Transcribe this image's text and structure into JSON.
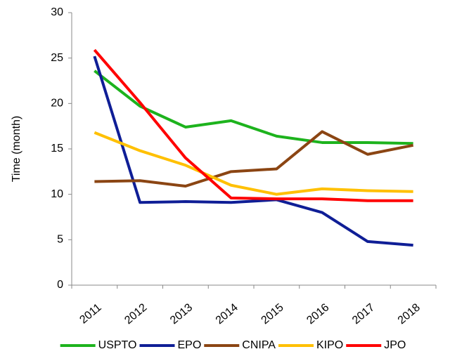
{
  "chart_data": {
    "type": "line",
    "y_label": "Time (month)",
    "categories": [
      "2011",
      "2012",
      "2013",
      "2014",
      "2015",
      "2016",
      "2017",
      "2018"
    ],
    "series": [
      {
        "name": "USPTO",
        "color": "#1db31d",
        "values": [
          23.6,
          19.7,
          17.4,
          18.1,
          16.4,
          15.7,
          15.7,
          15.6
        ]
      },
      {
        "name": "EPO",
        "color": "#0f1e96",
        "values": [
          25.2,
          9.1,
          9.2,
          9.1,
          9.4,
          8.0,
          4.8,
          4.4
        ]
      },
      {
        "name": "CNIPA",
        "color": "#8b4513",
        "values": [
          11.4,
          11.5,
          10.9,
          12.5,
          12.8,
          16.9,
          14.4,
          15.4
        ]
      },
      {
        "name": "KIPO",
        "color": "#ffc000",
        "values": [
          16.8,
          14.8,
          13.2,
          11.0,
          10.0,
          10.6,
          10.4,
          10.3
        ]
      },
      {
        "name": "JPO",
        "color": "#ff0000",
        "values": [
          25.9,
          20.1,
          14.0,
          9.6,
          9.5,
          9.5,
          9.3,
          9.3
        ]
      }
    ],
    "ylim": [
      0,
      30
    ],
    "yticks": [
      0,
      5,
      10,
      15,
      20,
      25,
      30
    ],
    "grid": false,
    "legend": "bottom"
  }
}
